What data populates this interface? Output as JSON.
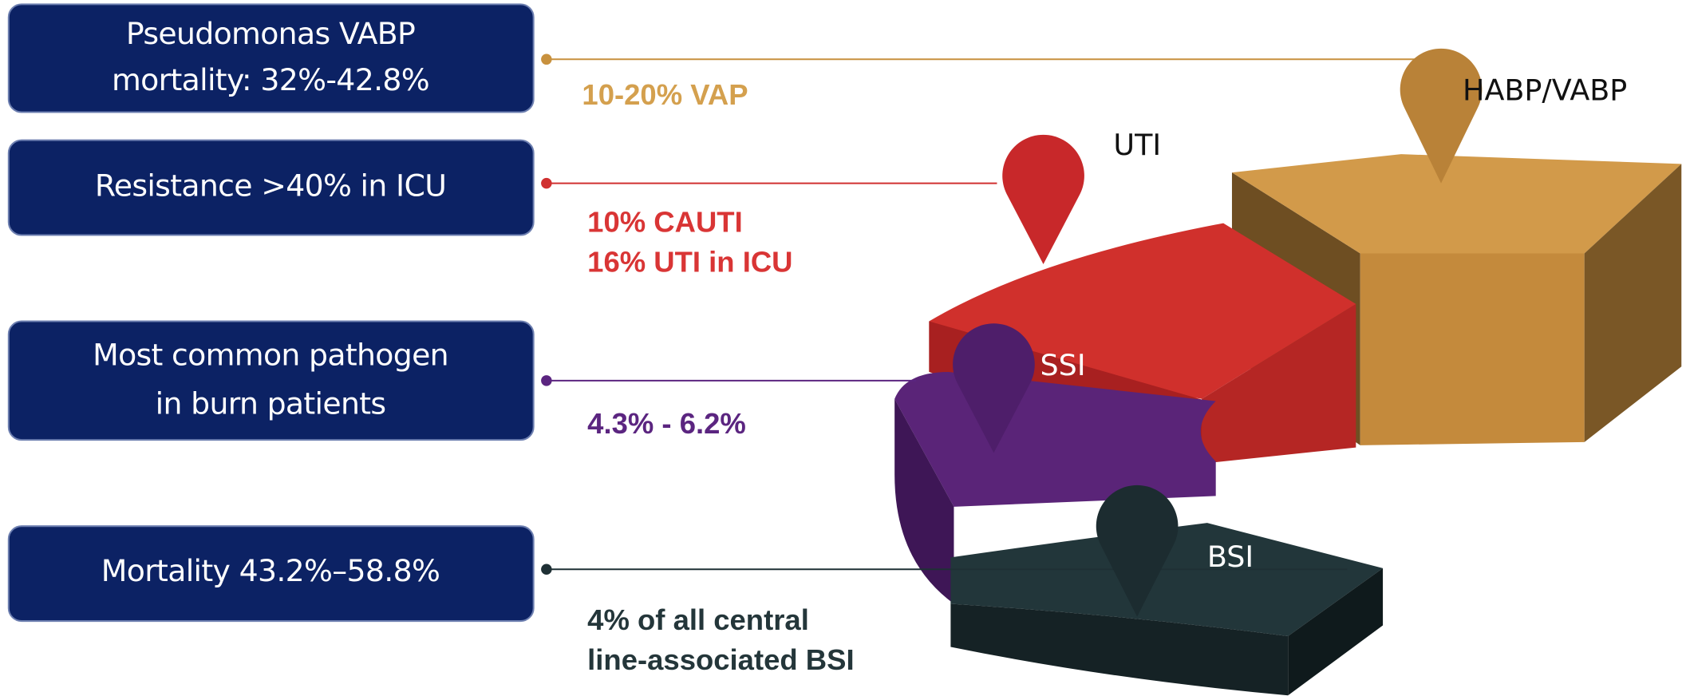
{
  "rows": [
    {
      "box": [
        "Pseudomonas VABP",
        "mortality: 32%-42.8%"
      ],
      "stat": [
        "10-20% VAP"
      ],
      "segment": "HABP/VABP"
    },
    {
      "box": [
        "Resistance >40% in ICU"
      ],
      "stat": [
        "10% CAUTI",
        "16% UTI in ICU"
      ],
      "segment": "UTI"
    },
    {
      "box": [
        "Most common pathogen",
        "in burn patients"
      ],
      "stat": [
        "4.3% - 6.2%"
      ],
      "segment": "SSI"
    },
    {
      "box": [
        "Mortality 43.2%–58.8%"
      ],
      "stat": [
        "4% of all central",
        "line-associated BSI"
      ],
      "segment": "BSI"
    }
  ]
}
